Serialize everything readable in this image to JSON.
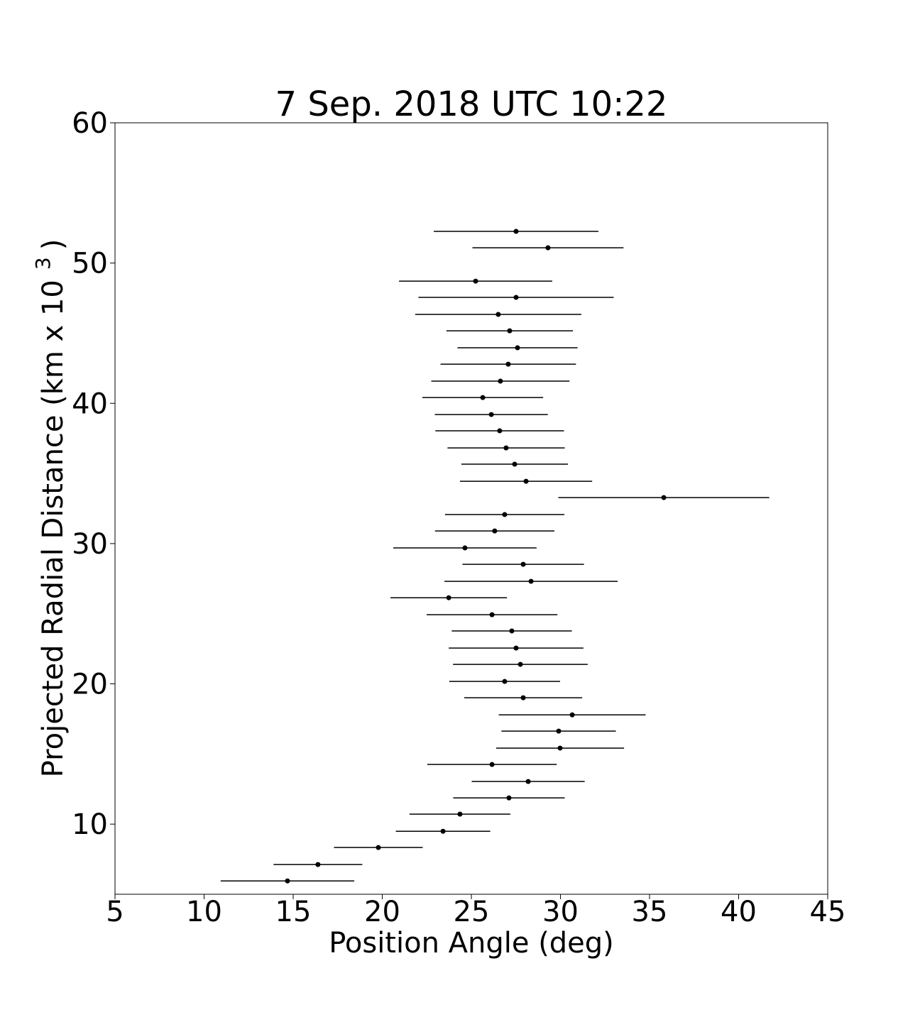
{
  "chart_data": {
    "type": "errorbar",
    "title": "7 Sep. 2018 UTC 10:22",
    "xlabel": "Position Angle (deg)",
    "ylabel": "Projected Radial Distance (km x 10",
    "ylabel_sup": "3",
    "ylabel_end": ")",
    "color": "#000000",
    "x": [
      27.51,
      29.3,
      25.24,
      27.51,
      26.51,
      27.15,
      27.59,
      27.07,
      26.63,
      25.64,
      26.12,
      26.59,
      26.95,
      27.43,
      28.07,
      35.8,
      26.87,
      26.31,
      24.64,
      27.91,
      28.35,
      23.73,
      26.16,
      27.27,
      27.51,
      27.75,
      26.87,
      27.91,
      30.66,
      29.9,
      29.98,
      26.16,
      28.19,
      27.11,
      24.36,
      23.41,
      19.78,
      16.39,
      14.68
    ],
    "values": [
      52.26,
      51.09,
      48.71,
      47.55,
      46.34,
      45.17,
      43.96,
      42.79,
      41.58,
      40.41,
      39.2,
      38.04,
      36.82,
      35.66,
      34.44,
      33.28,
      32.07,
      30.9,
      29.69,
      28.52,
      27.31,
      26.14,
      24.93,
      23.77,
      22.55,
      21.39,
      20.17,
      19.01,
      17.79,
      16.63,
      15.42,
      14.25,
      13.04,
      11.87,
      10.71,
      9.49,
      8.33,
      7.12,
      5.95
    ],
    "xerr": [
      4.62,
      4.24,
      4.3,
      5.48,
      4.66,
      3.55,
      3.37,
      3.8,
      3.88,
      3.39,
      3.17,
      3.61,
      3.29,
      2.99,
      3.71,
      5.92,
      3.35,
      3.35,
      4.02,
      3.41,
      4.86,
      3.27,
      3.67,
      3.37,
      3.78,
      3.78,
      3.11,
      3.31,
      4.12,
      3.21,
      3.59,
      3.63,
      3.17,
      3.13,
      2.83,
      2.65,
      2.49,
      2.49,
      3.75
    ],
    "xlim": [
      5,
      45
    ],
    "xticks": [
      5,
      10,
      15,
      20,
      25,
      30,
      35,
      40,
      45
    ],
    "ylim": [
      5,
      60
    ],
    "yticks": [
      10,
      20,
      30,
      40,
      50,
      60
    ],
    "grid": false
  }
}
